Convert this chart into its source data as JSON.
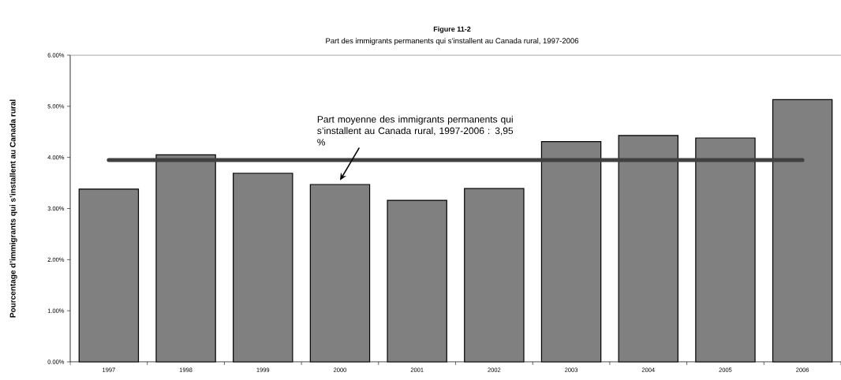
{
  "chart_data": {
    "type": "bar",
    "title": "Figure 11-2",
    "subtitle": "Part des immigrants permanents qui s’installent au Canada rural, 1997-2006",
    "ylabel": "Pourcentage d’immigrants qui s’installent au Canada rural",
    "categories": [
      "1997",
      "1998",
      "1999",
      "2000",
      "2001",
      "2002",
      "2003",
      "2004",
      "2005",
      "2006"
    ],
    "values": [
      3.38,
      4.05,
      3.69,
      3.47,
      3.16,
      3.39,
      4.31,
      4.43,
      4.38,
      5.13
    ],
    "color": "#808080",
    "ylim": [
      0,
      6
    ],
    "yticks": [
      {
        "value": 0,
        "label": "0.00%"
      },
      {
        "value": 1,
        "label": "1.00%"
      },
      {
        "value": 2,
        "label": "2.00%"
      },
      {
        "value": 3,
        "label": "3.00%"
      },
      {
        "value": 4,
        "label": "4.00%"
      },
      {
        "value": 5,
        "label": "5.00%"
      },
      {
        "value": 6,
        "label": "6.00%"
      }
    ],
    "grid": false,
    "ref_lines": [
      {
        "axis": "y",
        "value": 3.95,
        "label": "Part moyenne des immigrants permanents qui s’installent au Canada rural, 1997-2006 : 3,95 %",
        "color": "#404040"
      }
    ]
  }
}
